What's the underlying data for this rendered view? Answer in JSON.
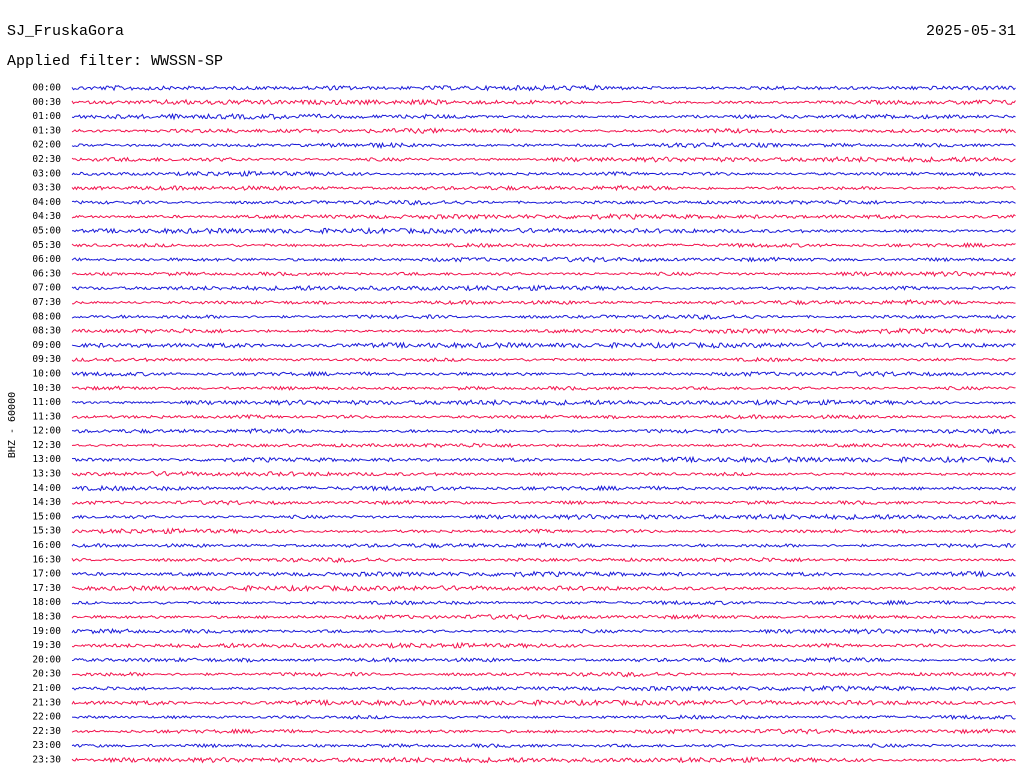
{
  "header": {
    "station": "SJ_FruskaGora",
    "date": "2025-05-31",
    "filter": "Applied filter: WWSSN-SP"
  },
  "y_label": "BHZ - 60000",
  "trace_colors": [
    "#1a1ad8",
    "#f2134d"
  ],
  "rows": [
    "00:00",
    "00:30",
    "01:00",
    "01:30",
    "02:00",
    "02:30",
    "03:00",
    "03:30",
    "04:00",
    "04:30",
    "05:00",
    "05:30",
    "06:00",
    "06:30",
    "07:00",
    "07:30",
    "08:00",
    "08:30",
    "09:00",
    "09:30",
    "10:00",
    "10:30",
    "11:00",
    "11:30",
    "12:00",
    "12:30",
    "13:00",
    "13:30",
    "14:00",
    "14:30",
    "15:00",
    "15:30",
    "16:00",
    "16:30",
    "17:00",
    "17:30",
    "18:00",
    "18:30",
    "19:00",
    "19:30",
    "20:00",
    "20:30",
    "21:00",
    "21:30",
    "22:00",
    "22:30",
    "23:00",
    "23:30"
  ]
}
